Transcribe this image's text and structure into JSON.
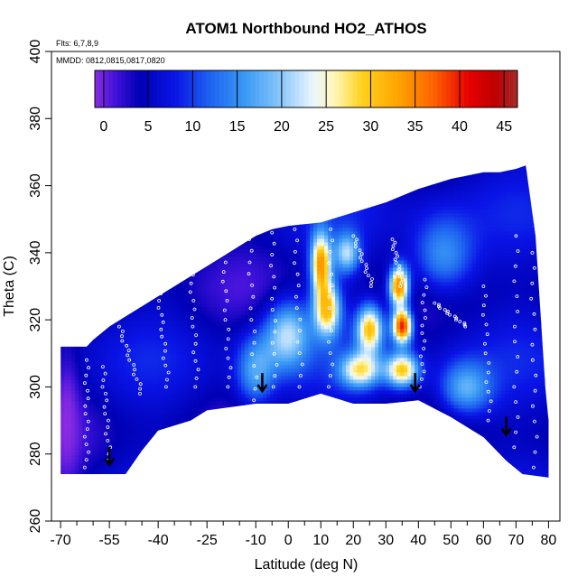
{
  "chart_data": {
    "type": "heatmap",
    "title": "ATOM1 Northbound HO2_ATHOS",
    "flights_note": "Flts: 6,7,8,9",
    "dates_note": "MMDD: 0812,0815,0817,0820",
    "xlabel": "Latitude (deg N)",
    "ylabel": "Theta (C)",
    "xlim": [
      -70,
      80
    ],
    "ylim": [
      260,
      400
    ],
    "x_tick_labels": [
      "-70",
      "-55",
      "-40",
      "-25",
      "-10",
      "0",
      "10",
      "20",
      "30",
      "40",
      "50",
      "60",
      "70",
      "80"
    ],
    "x_tick_values": [
      -70,
      -55,
      -40,
      -25,
      -10,
      0,
      10,
      20,
      30,
      40,
      50,
      60,
      70,
      80
    ],
    "x_minor_ticks": [
      -65,
      -60,
      -50,
      -45,
      -35,
      -30,
      -20,
      -15,
      -5,
      5,
      15,
      25,
      35,
      45,
      55,
      65,
      75
    ],
    "y_tick_labels": [
      "260",
      "280",
      "300",
      "320",
      "340",
      "360",
      "380",
      "400"
    ],
    "y_tick_values": [
      260,
      280,
      300,
      320,
      340,
      360,
      380,
      400
    ],
    "colorbar": {
      "range": [
        -1,
        46.5
      ],
      "tick_labels": [
        "0",
        "5",
        "10",
        "15",
        "20",
        "25",
        "30",
        "35",
        "40",
        "45"
      ],
      "tick_values": [
        0,
        5,
        10,
        15,
        20,
        25,
        30,
        35,
        40,
        45
      ],
      "color_stops": [
        {
          "v": -1,
          "c": "#8a2be2"
        },
        {
          "v": 1.5,
          "c": "#3b10d8"
        },
        {
          "v": 4,
          "c": "#0000b4"
        },
        {
          "v": 8,
          "c": "#0a14e6"
        },
        {
          "v": 12,
          "c": "#1e64f0"
        },
        {
          "v": 16,
          "c": "#3c9bf5"
        },
        {
          "v": 20,
          "c": "#8cc8fa"
        },
        {
          "v": 23.5,
          "c": "#eaf6ff"
        },
        {
          "v": 26,
          "c": "#fff7b4"
        },
        {
          "v": 29,
          "c": "#ffd21e"
        },
        {
          "v": 33,
          "c": "#ffa500"
        },
        {
          "v": 37,
          "c": "#ff6400"
        },
        {
          "v": 41,
          "c": "#e60000"
        },
        {
          "v": 44,
          "c": "#be0000"
        },
        {
          "v": 46.5,
          "c": "#a52a2a"
        }
      ]
    },
    "upper_boundary": [
      [
        -70,
        312
      ],
      [
        -62,
        312
      ],
      [
        -60,
        314
      ],
      [
        -55,
        318
      ],
      [
        -50,
        321
      ],
      [
        -45,
        324
      ],
      [
        -40,
        327
      ],
      [
        -35,
        330
      ],
      [
        -30,
        333
      ],
      [
        -25,
        336
      ],
      [
        -20,
        339
      ],
      [
        -15,
        342
      ],
      [
        -10,
        345
      ],
      [
        -5,
        347
      ],
      [
        0,
        348
      ],
      [
        10,
        349
      ],
      [
        20,
        352
      ],
      [
        30,
        355
      ],
      [
        40,
        359
      ],
      [
        50,
        362
      ],
      [
        60,
        364
      ],
      [
        65,
        364
      ],
      [
        70,
        365
      ],
      [
        73,
        366
      ],
      [
        76,
        345
      ],
      [
        79,
        300
      ],
      [
        80,
        290
      ]
    ],
    "lower_boundary": [
      [
        -70,
        274
      ],
      [
        -50,
        274
      ],
      [
        -45,
        281
      ],
      [
        -40,
        287
      ],
      [
        -30,
        290
      ],
      [
        -25,
        293
      ],
      [
        -10,
        295
      ],
      [
        0,
        295
      ],
      [
        10,
        298
      ],
      [
        20,
        295
      ],
      [
        30,
        295
      ],
      [
        40,
        296
      ],
      [
        50,
        291
      ],
      [
        60,
        285
      ],
      [
        67,
        278
      ],
      [
        72,
        274
      ],
      [
        80,
        273
      ]
    ],
    "hotspots": [
      {
        "lat": 10,
        "theta": 337,
        "value": 34,
        "sx": 3,
        "sy": 9
      },
      {
        "lat": 12,
        "theta": 323,
        "value": 31,
        "sx": 4,
        "sy": 8
      },
      {
        "lat": 25,
        "theta": 317,
        "value": 31,
        "sx": 4,
        "sy": 7
      },
      {
        "lat": 35,
        "theta": 318,
        "value": 40,
        "sx": 3,
        "sy": 5
      },
      {
        "lat": 34,
        "theta": 330,
        "value": 35,
        "sx": 3,
        "sy": 6
      },
      {
        "lat": 22,
        "theta": 305,
        "value": 28,
        "sx": 6,
        "sy": 5
      },
      {
        "lat": 35,
        "theta": 305,
        "value": 30,
        "sx": 5,
        "sy": 5
      },
      {
        "lat": 0,
        "theta": 315,
        "value": 22,
        "sx": 7,
        "sy": 10
      },
      {
        "lat": 18,
        "theta": 340,
        "value": 22,
        "sx": 4,
        "sy": 6
      },
      {
        "lat": 55,
        "theta": 300,
        "value": 18,
        "sx": 8,
        "sy": 8
      },
      {
        "lat": -10,
        "theta": 305,
        "value": 17,
        "sx": 6,
        "sy": 10
      },
      {
        "lat": 48,
        "theta": 340,
        "value": 15,
        "sx": 10,
        "sy": 12
      },
      {
        "lat": -68,
        "theta": 290,
        "value": -1,
        "sx": 4,
        "sy": 20
      }
    ],
    "background_value": 5,
    "arrows": [
      {
        "lat": -55,
        "theta": 277
      },
      {
        "lat": -8,
        "theta": 299
      },
      {
        "lat": 39,
        "theta": 299
      },
      {
        "lat": 67,
        "theta": 286
      }
    ],
    "flight_tracks": [
      {
        "x0": -62,
        "y0": 308,
        "x1": -62,
        "y1": 276
      },
      {
        "x0": -57,
        "y0": 306,
        "x1": -55,
        "y1": 278
      },
      {
        "x0": -52,
        "y0": 318,
        "x1": -45,
        "y1": 298
      },
      {
        "x0": -40,
        "y0": 330,
        "x1": -37,
        "y1": 300
      },
      {
        "x0": -30,
        "y0": 336,
        "x1": -28,
        "y1": 300
      },
      {
        "x0": -20,
        "y0": 340,
        "x1": -18,
        "y1": 300
      },
      {
        "x0": -12,
        "y0": 344,
        "x1": -10,
        "y1": 296
      },
      {
        "x0": -5,
        "y0": 346,
        "x1": -4,
        "y1": 300
      },
      {
        "x0": 2,
        "y0": 347,
        "x1": 4,
        "y1": 300
      },
      {
        "x0": 13,
        "y0": 347,
        "x1": 13,
        "y1": 300
      },
      {
        "x0": 20,
        "y0": 345,
        "x1": 26,
        "y1": 330
      },
      {
        "x0": 32,
        "y0": 344,
        "x1": 35,
        "y1": 330
      },
      {
        "x0": 42,
        "y0": 332,
        "x1": 41,
        "y1": 300
      },
      {
        "x0": 45,
        "y0": 325,
        "x1": 55,
        "y1": 318
      },
      {
        "x0": 60,
        "y0": 330,
        "x1": 62,
        "y1": 290
      },
      {
        "x0": 70,
        "y0": 345,
        "x1": 70,
        "y1": 282
      },
      {
        "x0": 75,
        "y0": 340,
        "x1": 76,
        "y1": 276
      }
    ]
  }
}
